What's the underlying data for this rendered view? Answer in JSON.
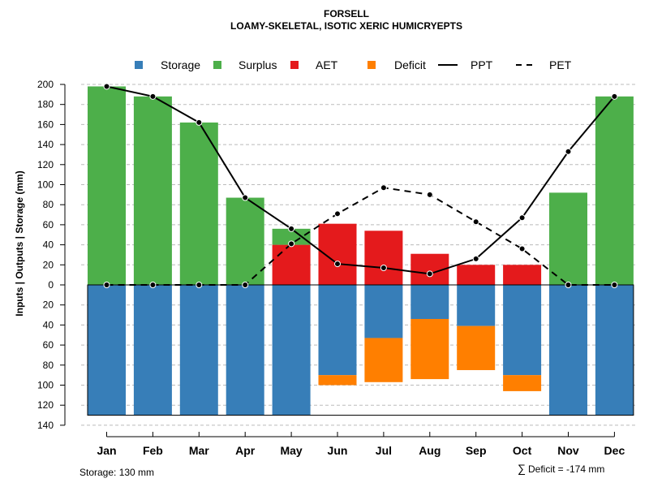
{
  "chart_data": {
    "type": "bar",
    "title": "FORSELL",
    "subtitle": "LOAMY-SKELETAL, ISOTIC XERIC HUMICRYEPTS",
    "ylabel": "Inputs | Outputs | Storage     (mm)",
    "ylim": [
      -140,
      200
    ],
    "y_ticks": [
      {
        "value": 200,
        "label": "200"
      },
      {
        "value": 180,
        "label": "180"
      },
      {
        "value": 160,
        "label": "160"
      },
      {
        "value": 140,
        "label": "140"
      },
      {
        "value": 120,
        "label": "120"
      },
      {
        "value": 100,
        "label": "100"
      },
      {
        "value": 80,
        "label": "80"
      },
      {
        "value": 60,
        "label": "60"
      },
      {
        "value": 40,
        "label": "40"
      },
      {
        "value": 20,
        "label": "20"
      },
      {
        "value": 0,
        "label": "0"
      },
      {
        "value": -20,
        "label": "20"
      },
      {
        "value": -40,
        "label": "40"
      },
      {
        "value": -60,
        "label": "60"
      },
      {
        "value": -80,
        "label": "80"
      },
      {
        "value": -100,
        "label": "100"
      },
      {
        "value": -120,
        "label": "120"
      },
      {
        "value": -140,
        "label": "140"
      }
    ],
    "categories": [
      "Jan",
      "Feb",
      "Mar",
      "Apr",
      "May",
      "Jun",
      "Jul",
      "Aug",
      "Sep",
      "Oct",
      "Nov",
      "Dec"
    ],
    "bars": {
      "storage": [
        130,
        130,
        130,
        130,
        130,
        90,
        53,
        34,
        41,
        90,
        130,
        130
      ],
      "deficit": [
        0,
        0,
        0,
        0,
        0,
        10,
        44,
        60,
        44,
        16,
        0,
        0
      ],
      "aet": [
        0,
        0,
        0,
        0,
        40,
        61,
        54,
        31,
        20,
        20,
        0,
        0
      ],
      "surplus": [
        198,
        188,
        162,
        87,
        16,
        0,
        0,
        0,
        0,
        0,
        92,
        188
      ]
    },
    "lines": {
      "ppt": [
        198,
        188,
        162,
        87,
        56,
        21,
        17,
        11,
        26,
        67,
        133,
        188
      ],
      "pet": [
        0,
        0,
        0,
        0,
        41,
        71,
        97,
        90,
        63,
        36,
        0,
        0
      ]
    },
    "grid": true,
    "legend_position": "top",
    "legend": [
      {
        "key": "storage",
        "label": "Storage",
        "kind": "box"
      },
      {
        "key": "surplus",
        "label": "Surplus",
        "kind": "box"
      },
      {
        "key": "aet",
        "label": "AET",
        "kind": "box"
      },
      {
        "key": "deficit",
        "label": "Deficit",
        "kind": "box"
      },
      {
        "key": "ppt",
        "label": "PPT",
        "kind": "solid-line"
      },
      {
        "key": "pet",
        "label": "PET",
        "kind": "dashed-line"
      }
    ],
    "footnotes": {
      "storage": "Storage: 130 mm",
      "deficit_symbol": "∑",
      "deficit": "Deficit = -174 mm"
    }
  },
  "colors": {
    "storage": "#377eb8",
    "surplus": "#4daf4a",
    "aet": "#e41a1c",
    "deficit": "#ff7f00",
    "line": "#000000",
    "grid": "#bbbbbb"
  }
}
